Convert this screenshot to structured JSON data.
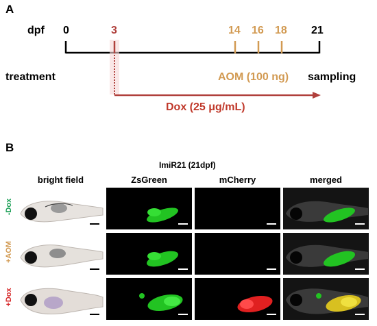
{
  "panelA": {
    "label": "A",
    "axis_label": "dpf",
    "ticks": [
      {
        "text": "0",
        "color": "#000000"
      },
      {
        "text": "3",
        "color": "#b0403c"
      },
      {
        "text": "14",
        "color": "#d29a52"
      },
      {
        "text": "16",
        "color": "#d29a52"
      },
      {
        "text": "18",
        "color": "#d29a52"
      },
      {
        "text": "21",
        "color": "#000000"
      }
    ],
    "treatment_label": "treatment",
    "aom_label": "AOM (100 ng)",
    "sampling_label": "sampling",
    "dox_label": "Dox (25 μg/mL)"
  },
  "panelB": {
    "label": "B",
    "title": "ImiR21 (21dpf)",
    "columns": [
      "bright field",
      "ZsGreen",
      "mCherry",
      "merged"
    ],
    "rows": [
      {
        "label": "-Dox",
        "color": "#1a9f55"
      },
      {
        "label": "+AOM",
        "color": "#d29a52"
      },
      {
        "label": "+Dox",
        "color": "#d62728"
      }
    ]
  },
  "colors": {
    "black": "#000000",
    "gold": "#d29a52",
    "darkred": "#b0403c",
    "green": "#22c322",
    "red": "#e02020"
  }
}
